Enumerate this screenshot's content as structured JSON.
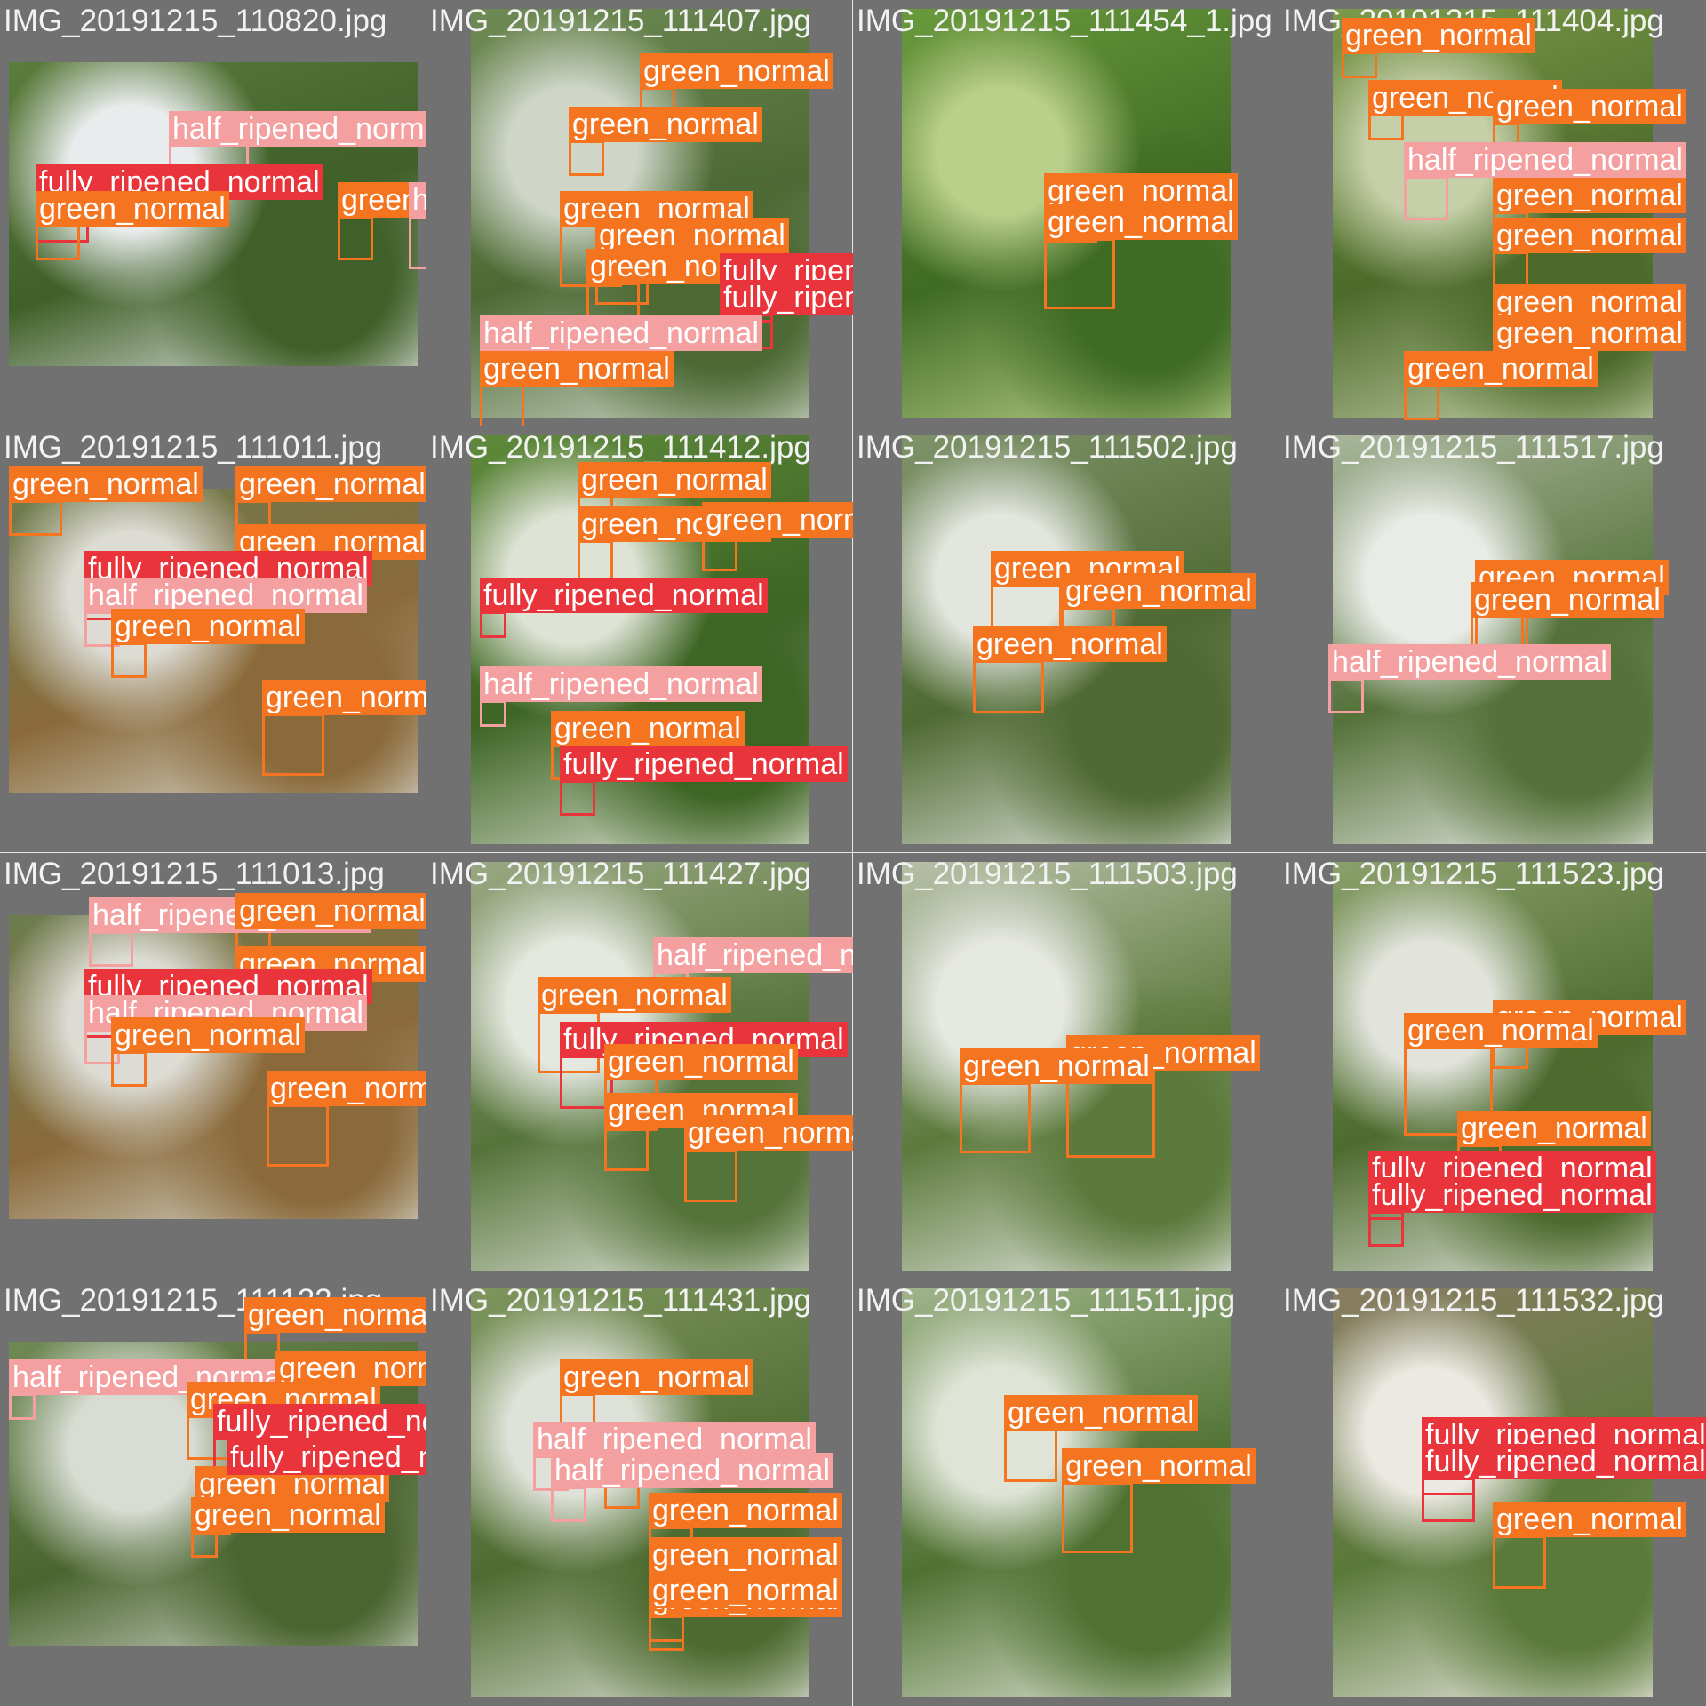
{
  "colors": {
    "grid_background": "#727272",
    "green_normal": "#F47420",
    "half_ripened_normal": "#F4A0A0",
    "fully_ripened_normal": "#E8343A",
    "title_text": "#F2F2F2"
  },
  "cells": [
    {
      "title": "IMG_20191215_110820.jpg",
      "palette": [
        "#5b7d3c",
        "#e9ecec",
        "#3f6028"
      ],
      "labels": [
        {
          "text": "half_ripened_normal",
          "cls": "half_ripened_normal"
        },
        {
          "text": "fully_ripened_normal",
          "cls": "fully_ripened_normal"
        },
        {
          "text": "green_normal",
          "cls": "green_normal"
        },
        {
          "text": "green_normal",
          "cls": "green_normal"
        },
        {
          "text": "half_ripened_normal",
          "cls": "half_ripened_normal"
        }
      ]
    },
    {
      "title": "IMG_20191215_111407.jpg",
      "palette": [
        "#6f8b55",
        "#cfd6c8",
        "#4d6a35"
      ],
      "labels": [
        {
          "text": "green_normal",
          "cls": "green_normal"
        },
        {
          "text": "green_normal",
          "cls": "green_normal"
        },
        {
          "text": "green_normal",
          "cls": "green_normal"
        },
        {
          "text": "green_normal",
          "cls": "green_normal"
        },
        {
          "text": "green_normal",
          "cls": "green_normal"
        },
        {
          "text": "fully_ripened_normal",
          "cls": "fully_ripened_normal"
        },
        {
          "text": "fully_ripened_normal",
          "cls": "fully_ripened_normal"
        },
        {
          "text": "half_ripened_normal",
          "cls": "half_ripened_normal"
        },
        {
          "text": "green_normal",
          "cls": "green_normal"
        }
      ]
    },
    {
      "title": "IMG_20191215_111454_1.jpg",
      "palette": [
        "#6a9a3d",
        "#b9cf8a",
        "#3f6b23"
      ],
      "labels": [
        {
          "text": "green_normal",
          "cls": "green_normal"
        },
        {
          "text": "green_normal",
          "cls": "green_normal"
        }
      ]
    },
    {
      "title": "IMG_20191215_111404.jpg",
      "palette": [
        "#7c9a4a",
        "#c6cfa8",
        "#4c6b2a"
      ],
      "labels": [
        {
          "text": "green_normal",
          "cls": "green_normal"
        },
        {
          "text": "green_normal",
          "cls": "green_normal"
        },
        {
          "text": "green_normal",
          "cls": "green_normal"
        },
        {
          "text": "half_ripened_normal",
          "cls": "half_ripened_normal"
        },
        {
          "text": "green_normal",
          "cls": "green_normal"
        },
        {
          "text": "green_normal",
          "cls": "green_normal"
        },
        {
          "text": "green_normal",
          "cls": "green_normal"
        },
        {
          "text": "green_normal",
          "cls": "green_normal"
        },
        {
          "text": "green_normal",
          "cls": "green_normal"
        }
      ]
    },
    {
      "title": "IMG_20191215_111011.jpg",
      "palette": [
        "#6c7d50",
        "#dcdcd4",
        "#8a6a3a"
      ],
      "labels": [
        {
          "text": "green_normal",
          "cls": "green_normal"
        },
        {
          "text": "green_normal",
          "cls": "green_normal"
        },
        {
          "text": "green_normal",
          "cls": "green_normal"
        },
        {
          "text": "fully_ripened_normal",
          "cls": "fully_ripened_normal"
        },
        {
          "text": "half_ripened_normal",
          "cls": "half_ripened_normal"
        },
        {
          "text": "green_normal",
          "cls": "green_normal"
        },
        {
          "text": "green_normal",
          "cls": "green_normal"
        }
      ]
    },
    {
      "title": "IMG_20191215_111412.jpg",
      "palette": [
        "#5f8a3a",
        "#dfe3d5",
        "#3d6524"
      ],
      "labels": [
        {
          "text": "green_normal",
          "cls": "green_normal"
        },
        {
          "text": "green_normal",
          "cls": "green_normal"
        },
        {
          "text": "green_normal",
          "cls": "green_normal"
        },
        {
          "text": "half_ripened_normal",
          "cls": "half_ripened_normal"
        },
        {
          "text": "fully_ripened_normal",
          "cls": "fully_ripened_normal"
        },
        {
          "text": "half_ripened_normal",
          "cls": "half_ripened_normal"
        },
        {
          "text": "green_normal",
          "cls": "green_normal"
        },
        {
          "text": "fully_ripened_normal",
          "cls": "fully_ripened_normal"
        }
      ]
    },
    {
      "title": "IMG_20191215_111502.jpg",
      "palette": [
        "#7f936a",
        "#e3e6df",
        "#4f6a33"
      ],
      "labels": [
        {
          "text": "green_normal",
          "cls": "green_normal"
        },
        {
          "text": "green_normal",
          "cls": "green_normal"
        },
        {
          "text": "green_normal",
          "cls": "green_normal"
        }
      ]
    },
    {
      "title": "IMG_20191215_111517.jpg",
      "palette": [
        "#a8b59a",
        "#e9ebe6",
        "#55723a"
      ],
      "labels": [
        {
          "text": "green_normal",
          "cls": "green_normal"
        },
        {
          "text": "green_normal",
          "cls": "green_normal"
        },
        {
          "text": "half_ripened_normal",
          "cls": "half_ripened_normal"
        }
      ]
    },
    {
      "title": "IMG_20191215_111013.jpg",
      "palette": [
        "#6c7d50",
        "#dcdcd4",
        "#8a6a3a"
      ],
      "labels": [
        {
          "text": "half_ripened_normal",
          "cls": "half_ripened_normal"
        },
        {
          "text": "green_normal",
          "cls": "green_normal"
        },
        {
          "text": "green_normal",
          "cls": "green_normal"
        },
        {
          "text": "fully_ripened_normal",
          "cls": "fully_ripened_normal"
        },
        {
          "text": "half_ripened_normal",
          "cls": "half_ripened_normal"
        },
        {
          "text": "green_normal",
          "cls": "green_normal"
        },
        {
          "text": "green_normal",
          "cls": "green_normal"
        }
      ]
    },
    {
      "title": "IMG_20191215_111427.jpg",
      "palette": [
        "#9aa882",
        "#e5e8df",
        "#55743a"
      ],
      "labels": [
        {
          "text": "half_ripened_normal",
          "cls": "half_ripened_normal"
        },
        {
          "text": "green_normal",
          "cls": "green_normal"
        },
        {
          "text": "fully_ripened_normal",
          "cls": "fully_ripened_normal"
        },
        {
          "text": "green_normal",
          "cls": "green_normal"
        },
        {
          "text": "green_normal",
          "cls": "green_normal"
        },
        {
          "text": "green_normal",
          "cls": "green_normal"
        }
      ]
    },
    {
      "title": "IMG_20191215_111503.jpg",
      "palette": [
        "#b8c0a8",
        "#e6e8e2",
        "#5c7a3c"
      ],
      "labels": [
        {
          "text": "green_normal",
          "cls": "green_normal"
        },
        {
          "text": "green_normal",
          "cls": "green_normal"
        }
      ]
    },
    {
      "title": "IMG_20191215_111523.jpg",
      "palette": [
        "#8aa06a",
        "#e2e4dc",
        "#4d6b2e"
      ],
      "labels": [
        {
          "text": "green_normal",
          "cls": "green_normal"
        },
        {
          "text": "green_normal",
          "cls": "green_normal"
        },
        {
          "text": "green_normal",
          "cls": "green_normal"
        },
        {
          "text": "fully_ripened_normal",
          "cls": "fully_ripened_normal"
        },
        {
          "text": "fully_ripened_normal",
          "cls": "fully_ripened_normal"
        }
      ]
    },
    {
      "title": "IMG_20191215_111133.jpg",
      "palette": [
        "#6f8a55",
        "#d8dcd2",
        "#4a6530"
      ],
      "labels": [
        {
          "text": "green_normal",
          "cls": "green_normal"
        },
        {
          "text": "half_ripened_normal",
          "cls": "half_ripened_normal"
        },
        {
          "text": "green_normal",
          "cls": "green_normal"
        },
        {
          "text": "green_normal",
          "cls": "green_normal"
        },
        {
          "text": "fully_ripened_normal",
          "cls": "fully_ripened_normal"
        },
        {
          "text": "green_normal",
          "cls": "green_normal"
        },
        {
          "text": "fully_ripened_normal",
          "cls": "fully_ripened_normal"
        },
        {
          "text": "green_normal",
          "cls": "green_normal"
        }
      ]
    },
    {
      "title": "IMG_20191215_111431.jpg",
      "palette": [
        "#7e965e",
        "#dfe2d8",
        "#4e6c31"
      ],
      "labels": [
        {
          "text": "green_normal",
          "cls": "green_normal"
        },
        {
          "text": "green_normal",
          "cls": "green_normal"
        },
        {
          "text": "half_ripened_normal",
          "cls": "half_ripened_normal"
        },
        {
          "text": "half_ripened_normal",
          "cls": "half_ripened_normal"
        },
        {
          "text": "green_normal",
          "cls": "green_normal"
        },
        {
          "text": "green_normal",
          "cls": "green_normal"
        },
        {
          "text": "green_normal",
          "cls": "green_normal"
        },
        {
          "text": "green_normal",
          "cls": "green_normal"
        }
      ]
    },
    {
      "title": "IMG_20191215_111511.jpg",
      "palette": [
        "#9fb48a",
        "#dfe4d6",
        "#4f7232"
      ],
      "labels": [
        {
          "text": "green_normal",
          "cls": "green_normal"
        },
        {
          "text": "green_normal",
          "cls": "green_normal"
        }
      ]
    },
    {
      "title": "IMG_20191215_111532.jpg",
      "palette": [
        "#8a7d62",
        "#ece9e2",
        "#5a7a3a"
      ],
      "labels": [
        {
          "text": "fully_ripened_normal",
          "cls": "fully_ripened_normal"
        },
        {
          "text": "fully_ripened_normal",
          "cls": "fully_ripened_normal"
        },
        {
          "text": "green_normal",
          "cls": "green_normal"
        }
      ]
    }
  ]
}
